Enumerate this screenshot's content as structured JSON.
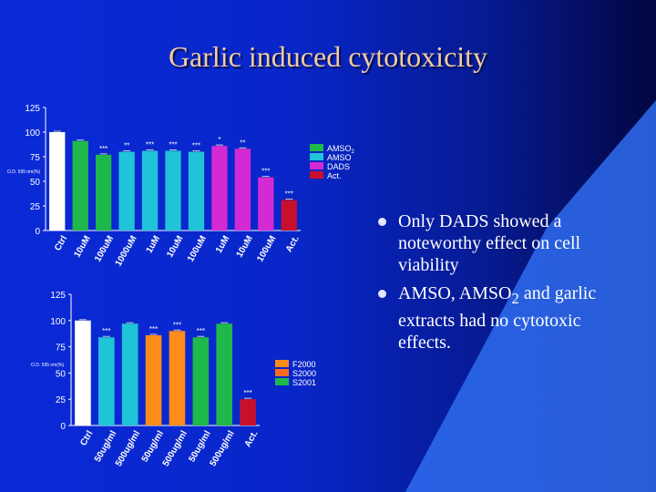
{
  "title": "Garlic induced cytotoxicity",
  "bullets": [
    {
      "parts": [
        "Only DADS showed a noteworthy effect on cell viability"
      ]
    },
    {
      "parts": [
        "AMSO, AMSO",
        "2",
        " and garlic extracts had no cytotoxic effects."
      ]
    }
  ],
  "chart_data": [
    {
      "type": "bar",
      "y_label": "O.D. 595 nm(%)",
      "categories": [
        "Ctrl",
        "10uM",
        "100uM",
        "1000uM",
        "1uM",
        "10uM",
        "100uM",
        "1uM",
        "10uM",
        "100uM",
        "Act."
      ],
      "values": [
        100,
        91,
        77,
        80,
        81,
        81,
        80,
        86,
        83,
        54,
        31
      ],
      "annotations": [
        null,
        null,
        "***",
        "**",
        "***",
        "***",
        "***",
        "*",
        "**",
        "***",
        "***"
      ],
      "colors": [
        "#ffffff",
        "#1fb84a",
        "#1fb84a",
        "#20c4d8",
        "#20c4d8",
        "#20c4d8",
        "#20c4d8",
        "#d42ad4",
        "#d42ad4",
        "#d42ad4",
        "#c8102e"
      ],
      "legend": [
        {
          "name": "AMSO",
          "sub": "2",
          "color": "#1fb84a"
        },
        {
          "name": "AMSO",
          "color": "#20c4d8"
        },
        {
          "name": "DADS",
          "color": "#d42ad4"
        },
        {
          "name": "Act.",
          "color": "#c8102e"
        }
      ],
      "ylim": [
        0,
        125
      ],
      "yticks": [
        0,
        25,
        50,
        75,
        100,
        125
      ]
    },
    {
      "type": "bar",
      "y_label": "O.D. 595 nm(%)",
      "categories": [
        "Ctrl",
        "50ug/ml",
        "500ug/ml",
        "50ug/ml",
        "500ug/ml",
        "50ug/ml",
        "500ug/ml",
        "Act."
      ],
      "values": [
        100,
        84,
        97,
        86,
        90,
        84,
        97,
        25
      ],
      "annotations": [
        null,
        "***",
        null,
        "***",
        "***",
        "***",
        null,
        "***"
      ],
      "colors": [
        "#ffffff",
        "#20c4d8",
        "#20c4d8",
        "#ff8c1a",
        "#ff8c1a",
        "#1fb84a",
        "#1fb84a",
        "#c8102e"
      ],
      "legend": [
        {
          "name": "F2000",
          "color": "#ff8c1a"
        },
        {
          "name": "S2000",
          "color": "#ff6a20"
        },
        {
          "name": "S2001",
          "color": "#1fb84a"
        }
      ],
      "ylim": [
        0,
        125
      ],
      "yticks": [
        0,
        25,
        50,
        75,
        100,
        125
      ]
    }
  ]
}
